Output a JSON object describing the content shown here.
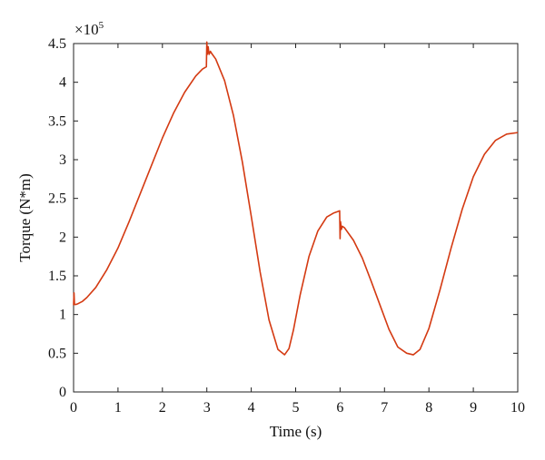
{
  "chart_data": {
    "type": "line",
    "xlabel": "Time (s)",
    "ylabel": "Torque (N*m)",
    "y_multiplier": {
      "base": "×10",
      "exponent": "5"
    },
    "xlim": [
      0,
      10
    ],
    "ylim": [
      0,
      4.5
    ],
    "x_ticks": [
      0,
      1,
      2,
      3,
      4,
      5,
      6,
      7,
      8,
      9,
      10
    ],
    "y_ticks": [
      0,
      0.5,
      1,
      1.5,
      2,
      2.5,
      3,
      3.5,
      4,
      4.5
    ],
    "x_tick_labels": [
      "0",
      "1",
      "2",
      "3",
      "4",
      "5",
      "6",
      "7",
      "8",
      "9",
      "10"
    ],
    "y_tick_labels": [
      "0",
      "0.5",
      "1",
      "1.5",
      "2",
      "2.5",
      "3",
      "3.5",
      "4",
      "4.5"
    ],
    "grid": false,
    "series": [
      {
        "color": "#d43a12",
        "x": [
          0,
          0.01,
          0.02,
          0.05,
          0.1,
          0.2,
          0.3,
          0.5,
          0.75,
          1.0,
          1.25,
          1.5,
          1.75,
          2.0,
          2.25,
          2.5,
          2.75,
          2.9,
          2.99,
          3.0,
          3.01,
          3.03,
          3.05,
          3.08,
          3.1,
          3.2,
          3.4,
          3.6,
          3.8,
          4.0,
          4.2,
          4.4,
          4.6,
          4.75,
          4.85,
          4.95,
          5.1,
          5.3,
          5.5,
          5.7,
          5.85,
          5.95,
          5.99,
          6.0,
          6.01,
          6.03,
          6.05,
          6.1,
          6.3,
          6.5,
          6.7,
          6.9,
          7.1,
          7.3,
          7.5,
          7.65,
          7.8,
          8.0,
          8.25,
          8.5,
          8.75,
          9.0,
          9.25,
          9.5,
          9.75,
          10.0
        ],
        "y": [
          1.12,
          1.28,
          1.13,
          1.13,
          1.14,
          1.17,
          1.22,
          1.35,
          1.58,
          1.86,
          2.2,
          2.56,
          2.92,
          3.28,
          3.6,
          3.87,
          4.08,
          4.17,
          4.2,
          4.52,
          4.36,
          4.46,
          4.36,
          4.4,
          4.38,
          4.3,
          4.02,
          3.57,
          2.97,
          2.27,
          1.55,
          0.93,
          0.55,
          0.48,
          0.56,
          0.8,
          1.25,
          1.75,
          2.08,
          2.26,
          2.31,
          2.33,
          2.34,
          1.98,
          2.2,
          2.1,
          2.14,
          2.12,
          1.96,
          1.73,
          1.43,
          1.12,
          0.81,
          0.58,
          0.5,
          0.48,
          0.55,
          0.82,
          1.32,
          1.86,
          2.36,
          2.78,
          3.07,
          3.25,
          3.33,
          3.35
        ]
      }
    ]
  }
}
